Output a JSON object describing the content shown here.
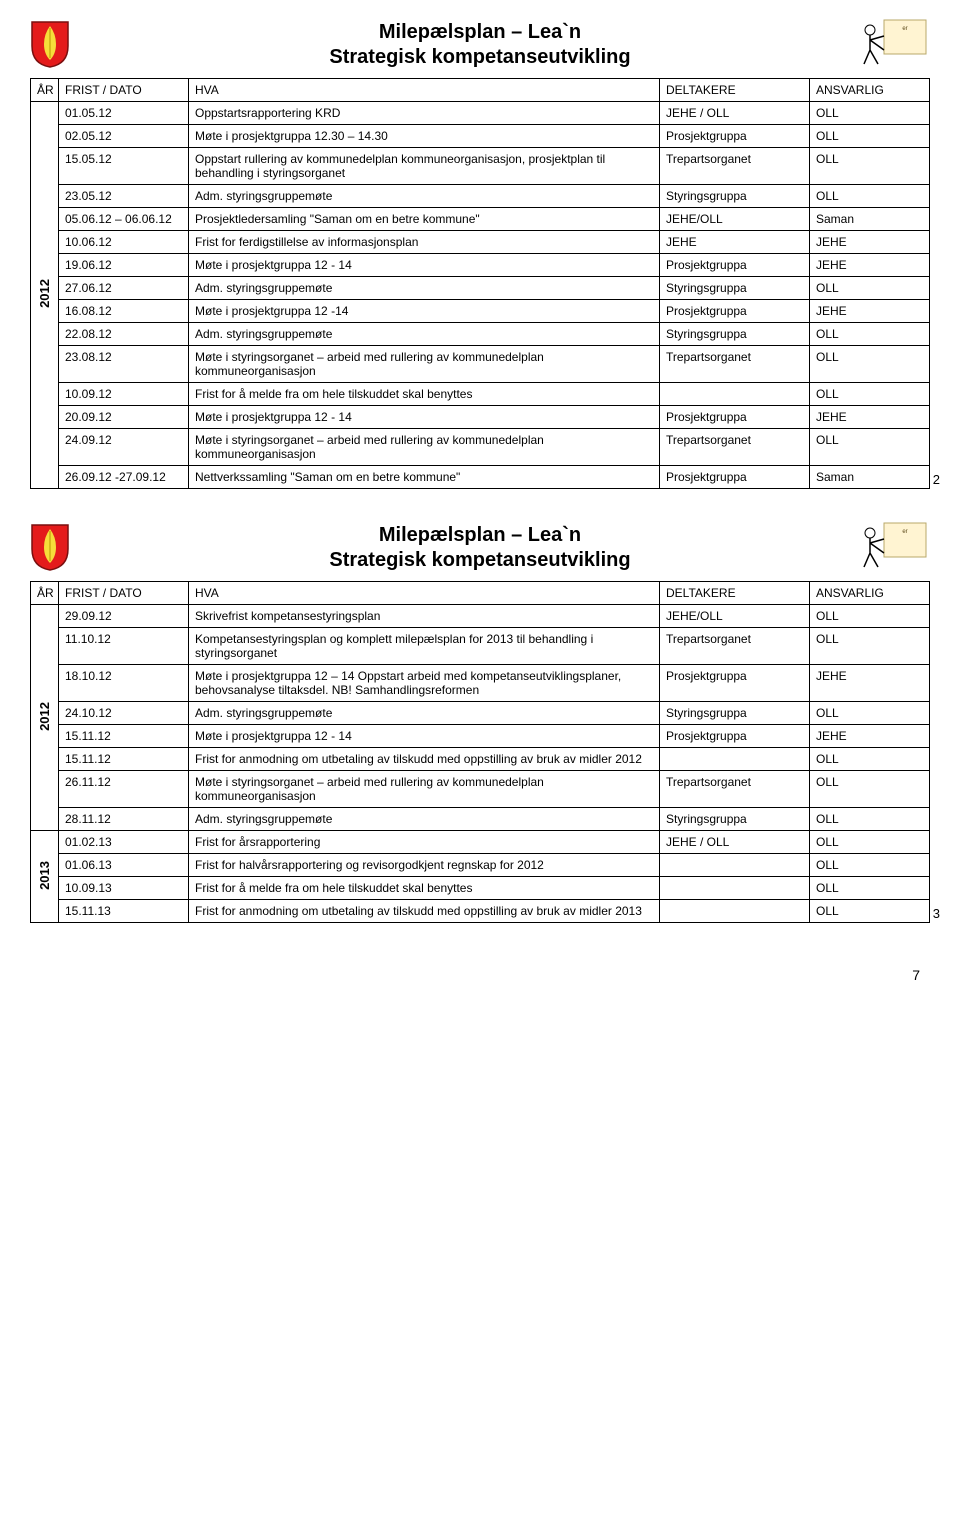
{
  "shield_colors": {
    "bg": "#e41b1b",
    "leaf": "#f6de3a"
  },
  "title_line1": "Milepælsplan – Lea`n",
  "title_line2": "Strategisk kompetanseutvikling",
  "graphic_box_text": [
    "er"
  ],
  "header": {
    "ar": "ÅR",
    "dato": "FRIST / DATO",
    "hva": "HVA",
    "delt": "DELTAKERE",
    "ansv": "ANSVARLIG"
  },
  "table1": {
    "year": "2012",
    "rows": [
      {
        "dato": "01.05.12",
        "hva": "Oppstartsrapportering KRD",
        "delt": "JEHE / OLL",
        "ansv": "OLL"
      },
      {
        "dato": "02.05.12",
        "hva": "Møte i prosjektgruppa 12.30 – 14.30",
        "delt": "Prosjektgruppa",
        "ansv": "OLL"
      },
      {
        "dato": "15.05.12",
        "hva": "Oppstart rullering av kommunedelplan kommuneorganisasjon, prosjektplan til behandling i styringsorganet",
        "delt": "Trepartsorganet",
        "ansv": "OLL"
      },
      {
        "dato": "23.05.12",
        "hva": "Adm. styringsgruppemøte",
        "delt": "Styringsgruppa",
        "ansv": "OLL"
      },
      {
        "dato": "05.06.12 – 06.06.12",
        "hva": "Prosjektledersamling \"Saman om en betre kommune\"",
        "delt": "JEHE/OLL",
        "ansv": "Saman"
      },
      {
        "dato": "10.06.12",
        "hva": "Frist for ferdigstillelse av informasjonsplan",
        "delt": "JEHE",
        "ansv": "JEHE"
      },
      {
        "dato": "19.06.12",
        "hva": "Møte i prosjektgruppa 12 - 14",
        "delt": "Prosjektgruppa",
        "ansv": "JEHE"
      },
      {
        "dato": "27.06.12",
        "hva": "Adm. styringsgruppemøte",
        "delt": "Styringsgruppa",
        "ansv": "OLL"
      },
      {
        "dato": "16.08.12",
        "hva": "Møte i prosjektgruppa 12 -14",
        "delt": "Prosjektgruppa",
        "ansv": "JEHE"
      },
      {
        "dato": "22.08.12",
        "hva": "Adm. styringsgruppemøte",
        "delt": "Styringsgruppa",
        "ansv": "OLL"
      },
      {
        "dato": "23.08.12",
        "hva": "Møte i styringsorganet – arbeid med rullering av kommunedelplan kommuneorganisasjon",
        "delt": "Trepartsorganet",
        "ansv": "OLL"
      },
      {
        "dato": "10.09.12",
        "hva": "Frist for å melde fra om hele tilskuddet skal benyttes",
        "delt": "",
        "ansv": "OLL"
      },
      {
        "dato": "20.09.12",
        "hva": "Møte i prosjektgruppa 12 - 14",
        "delt": "Prosjektgruppa",
        "ansv": "JEHE"
      },
      {
        "dato": "24.09.12",
        "hva": "Møte i styringsorganet – arbeid med rullering av kommunedelplan kommuneorganisasjon",
        "delt": "Trepartsorganet",
        "ansv": "OLL"
      },
      {
        "dato": "26.09.12 -27.09.12",
        "hva": "Nettverkssamling \"Saman om en betre kommune\"",
        "delt": "Prosjektgruppa",
        "ansv": "Saman"
      }
    ],
    "slide_num": "2"
  },
  "table2": {
    "year_a": "2012",
    "year_b": "2013",
    "rows_a": [
      {
        "dato": "29.09.12",
        "hva": "Skrivefrist kompetansestyringsplan",
        "delt": "JEHE/OLL",
        "ansv": "OLL"
      },
      {
        "dato": "11.10.12",
        "hva": "Kompetansestyringsplan og komplett milepælsplan for 2013 til behandling i styringsorganet",
        "delt": "Trepartsorganet",
        "ansv": "OLL"
      },
      {
        "dato": "18.10.12",
        "hva": "Møte i prosjektgruppa 12 – 14 Oppstart arbeid med kompetanseutviklingsplaner, behovsanalyse tiltaksdel. NB! Samhandlingsreformen",
        "delt": "Prosjektgruppa",
        "ansv": "JEHE"
      },
      {
        "dato": "24.10.12",
        "hva": "Adm. styringsgruppemøte",
        "delt": "Styringsgruppa",
        "ansv": "OLL"
      },
      {
        "dato": "15.11.12",
        "hva": "Møte i prosjektgruppa 12 - 14",
        "delt": "Prosjektgruppa",
        "ansv": "JEHE"
      },
      {
        "dato": "15.11.12",
        "hva": "Frist for anmodning om utbetaling av tilskudd med oppstilling av bruk av midler 2012",
        "delt": "",
        "ansv": "OLL"
      },
      {
        "dato": "26.11.12",
        "hva": "Møte i styringsorganet – arbeid med rullering av kommunedelplan kommuneorganisasjon",
        "delt": "Trepartsorganet",
        "ansv": "OLL"
      },
      {
        "dato": "28.11.12",
        "hva": "Adm. styringsgruppemøte",
        "delt": "Styringsgruppa",
        "ansv": "OLL"
      }
    ],
    "rows_b": [
      {
        "dato": "01.02.13",
        "hva": "Frist for årsrapportering",
        "delt": "JEHE / OLL",
        "ansv": "OLL"
      },
      {
        "dato": "01.06.13",
        "hva": "Frist for halvårsrapportering og revisorgodkjent regnskap for 2012",
        "delt": "",
        "ansv": "OLL"
      },
      {
        "dato": "10.09.13",
        "hva": "Frist for å melde fra om hele tilskuddet skal benyttes",
        "delt": "",
        "ansv": "OLL"
      },
      {
        "dato": "15.11.13",
        "hva": "Frist for anmodning om utbetaling av tilskudd med oppstilling av bruk av midler 2013",
        "delt": "",
        "ansv": "OLL"
      }
    ],
    "slide_num": "3"
  },
  "footer_page": "7"
}
